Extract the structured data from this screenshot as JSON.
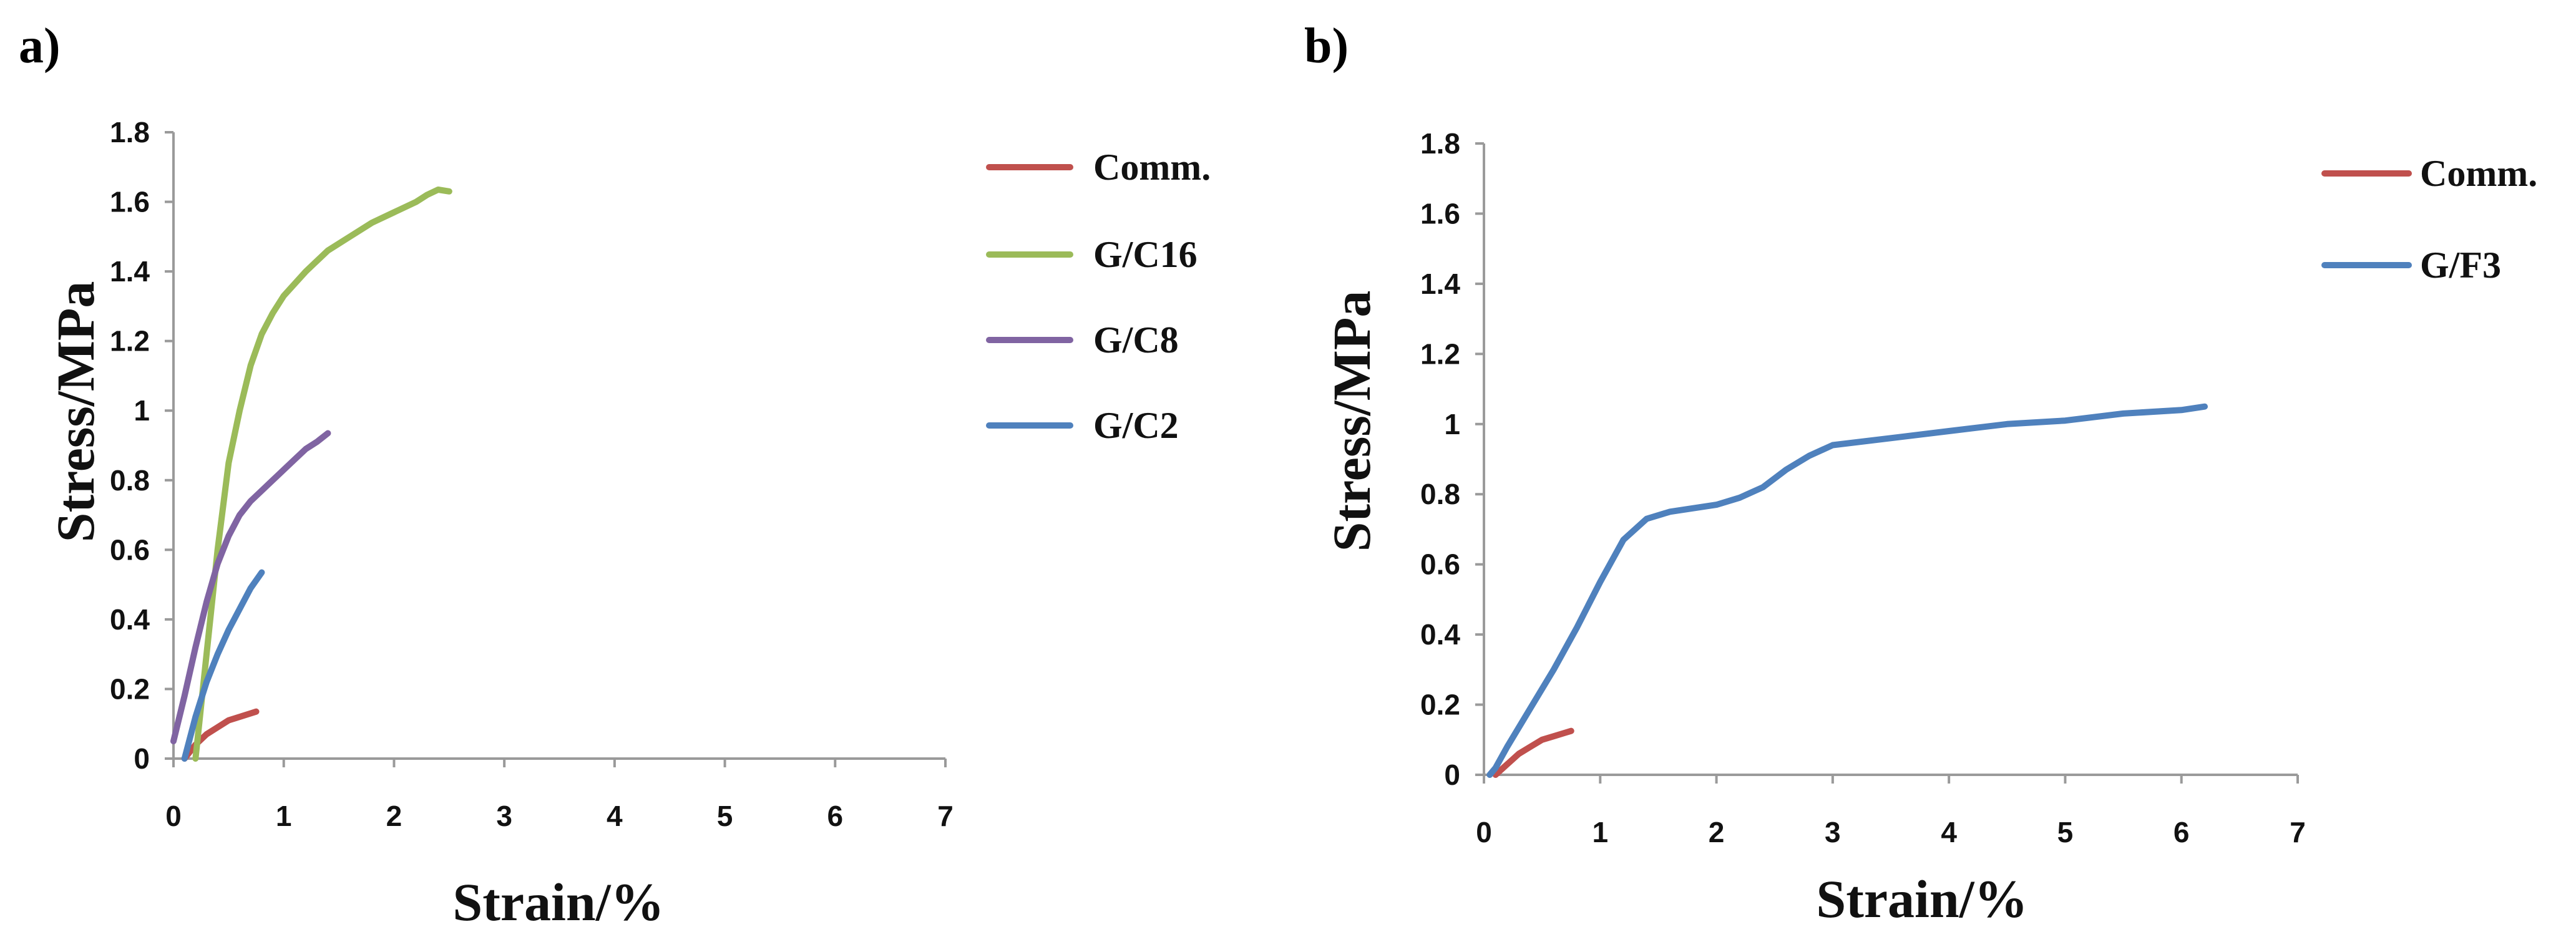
{
  "charts": [
    {
      "panel_label": "a)",
      "chart_data": {
        "type": "line",
        "xlabel": "Strain/%",
        "ylabel": "Stress/MPa",
        "xlim": [
          0,
          7
        ],
        "ylim": [
          0,
          1.8
        ],
        "xticks": [
          "0",
          "1",
          "2",
          "3",
          "4",
          "5",
          "6",
          "7"
        ],
        "yticks": [
          "0",
          "0.2",
          "0.4",
          "0.6",
          "0.8",
          "1",
          "1.2",
          "1.4",
          "1.6",
          "1.8"
        ],
        "legend_position": "right",
        "series": [
          {
            "name": "Comm.",
            "color": "#c0504d",
            "x": [
              0.1,
              0.2,
              0.3,
              0.4,
              0.5,
              0.6,
              0.7,
              0.75
            ],
            "y": [
              0.0,
              0.04,
              0.07,
              0.09,
              0.11,
              0.12,
              0.13,
              0.135
            ]
          },
          {
            "name": "G/C16",
            "color": "#9bbb59",
            "x": [
              0.2,
              0.3,
              0.4,
              0.5,
              0.6,
              0.7,
              0.8,
              0.9,
              1.0,
              1.2,
              1.4,
              1.6,
              1.8,
              2.0,
              2.2,
              2.3,
              2.4,
              2.5
            ],
            "y": [
              0.0,
              0.3,
              0.6,
              0.85,
              1.0,
              1.13,
              1.22,
              1.28,
              1.33,
              1.4,
              1.46,
              1.5,
              1.54,
              1.57,
              1.6,
              1.62,
              1.635,
              1.63
            ]
          },
          {
            "name": "G/C8",
            "color": "#8064a2",
            "x": [
              0.0,
              0.1,
              0.2,
              0.3,
              0.4,
              0.5,
              0.6,
              0.7,
              0.8,
              0.9,
              1.0,
              1.1,
              1.2,
              1.3,
              1.4
            ],
            "y": [
              0.05,
              0.18,
              0.32,
              0.45,
              0.56,
              0.64,
              0.7,
              0.74,
              0.77,
              0.8,
              0.83,
              0.86,
              0.89,
              0.91,
              0.935
            ]
          },
          {
            "name": "G/C2",
            "color": "#4f81bd",
            "x": [
              0.1,
              0.2,
              0.3,
              0.4,
              0.5,
              0.6,
              0.7,
              0.8
            ],
            "y": [
              0.0,
              0.12,
              0.22,
              0.3,
              0.37,
              0.43,
              0.49,
              0.535
            ]
          }
        ]
      }
    },
    {
      "panel_label": "b)",
      "chart_data": {
        "type": "line",
        "xlabel": "Strain/%",
        "ylabel": "Stress/MPa",
        "xlim": [
          0,
          7
        ],
        "ylim": [
          0,
          1.8
        ],
        "xticks": [
          "0",
          "1",
          "2",
          "3",
          "4",
          "5",
          "6",
          "7"
        ],
        "yticks": [
          "0",
          "0.2",
          "0.4",
          "0.6",
          "0.8",
          "1",
          "1.2",
          "1.4",
          "1.6",
          "1.8"
        ],
        "legend_position": "top-right",
        "series": [
          {
            "name": "Comm.",
            "color": "#c0504d",
            "x": [
              0.1,
              0.2,
              0.3,
              0.4,
              0.5,
              0.6,
              0.7,
              0.75
            ],
            "y": [
              0.0,
              0.03,
              0.06,
              0.08,
              0.1,
              0.11,
              0.12,
              0.125
            ]
          },
          {
            "name": "G/F3",
            "color": "#4f81bd",
            "x": [
              0.05,
              0.1,
              0.2,
              0.4,
              0.6,
              0.8,
              1.0,
              1.2,
              1.4,
              1.6,
              1.8,
              2.0,
              2.2,
              2.4,
              2.6,
              2.8,
              3.0,
              3.5,
              4.0,
              4.5,
              5.0,
              5.5,
              6.0,
              6.2
            ],
            "y": [
              0.0,
              0.02,
              0.08,
              0.19,
              0.3,
              0.42,
              0.55,
              0.67,
              0.73,
              0.75,
              0.76,
              0.77,
              0.79,
              0.82,
              0.87,
              0.91,
              0.94,
              0.96,
              0.98,
              1.0,
              1.01,
              1.03,
              1.04,
              1.05
            ]
          }
        ]
      }
    }
  ]
}
